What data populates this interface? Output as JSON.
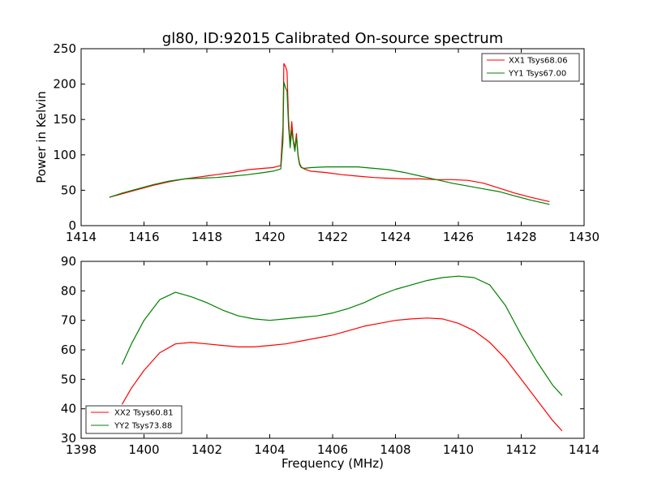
{
  "figure_title": "gl80, ID:92015 Calibrated On-source spectrum",
  "colors": {
    "xx": "#ff0000",
    "yy": "#008000",
    "axes": "#000000",
    "background": "#ffffff"
  },
  "chart_data": [
    {
      "type": "line",
      "title": "gl80, ID:92015 Calibrated On-source spectrum",
      "xlabel": "",
      "ylabel": "Power in Kelvin",
      "xlim": [
        1414,
        1430
      ],
      "ylim": [
        0,
        250
      ],
      "xticks": [
        1414,
        1416,
        1418,
        1420,
        1422,
        1424,
        1426,
        1428,
        1430
      ],
      "yticks": [
        0,
        50,
        100,
        150,
        200,
        250
      ],
      "grid": false,
      "legend_position": "top-right",
      "series": [
        {
          "name": "XX1 Tsys68.06",
          "color": "#ff0000",
          "x": [
            1414.9,
            1415.3,
            1415.8,
            1416.3,
            1416.8,
            1417.3,
            1417.8,
            1418.3,
            1418.8,
            1419.3,
            1419.8,
            1420.1,
            1420.35,
            1420.42,
            1420.45,
            1420.5,
            1420.55,
            1420.6,
            1420.65,
            1420.7,
            1420.75,
            1420.8,
            1420.85,
            1420.9,
            1420.95,
            1421.0,
            1421.1,
            1421.3,
            1421.8,
            1422.3,
            1422.8,
            1423.3,
            1423.8,
            1424.3,
            1424.8,
            1425.3,
            1425.8,
            1426.3,
            1426.8,
            1427.3,
            1427.8,
            1428.3,
            1428.9
          ],
          "y": [
            40,
            45,
            51,
            57,
            62,
            66,
            69,
            72,
            75,
            79,
            81,
            82,
            85,
            140,
            229,
            225,
            218,
            150,
            115,
            147,
            120,
            110,
            130,
            100,
            88,
            83,
            80,
            77,
            75,
            72,
            70,
            68,
            67,
            66,
            66,
            65,
            65,
            64,
            60,
            53,
            46,
            40,
            34
          ]
        },
        {
          "name": "YY1 Tsys67.00",
          "color": "#008000",
          "x": [
            1414.9,
            1415.3,
            1415.8,
            1416.3,
            1416.8,
            1417.3,
            1417.8,
            1418.3,
            1418.8,
            1419.3,
            1419.8,
            1420.1,
            1420.35,
            1420.42,
            1420.45,
            1420.5,
            1420.55,
            1420.6,
            1420.65,
            1420.7,
            1420.75,
            1420.8,
            1420.85,
            1420.9,
            1420.95,
            1421.0,
            1421.1,
            1421.3,
            1421.8,
            1422.3,
            1422.8,
            1423.3,
            1423.8,
            1424.3,
            1424.8,
            1425.3,
            1425.8,
            1426.3,
            1426.8,
            1427.3,
            1427.8,
            1428.3,
            1428.9
          ],
          "y": [
            40,
            46,
            52,
            58,
            63,
            66,
            67,
            68,
            70,
            72,
            75,
            77,
            80,
            120,
            203,
            195,
            190,
            140,
            110,
            135,
            118,
            105,
            125,
            98,
            86,
            82,
            81,
            82,
            83,
            83,
            83,
            81,
            79,
            75,
            70,
            65,
            60,
            56,
            52,
            48,
            42,
            36,
            30
          ]
        }
      ]
    },
    {
      "type": "line",
      "title": "",
      "xlabel": "Frequency (MHz)",
      "ylabel": "",
      "xlim": [
        1398,
        1414
      ],
      "ylim": [
        30,
        90
      ],
      "xticks": [
        1398,
        1400,
        1402,
        1404,
        1406,
        1408,
        1410,
        1412,
        1414
      ],
      "yticks": [
        30,
        40,
        50,
        60,
        70,
        80,
        90
      ],
      "grid": false,
      "legend_position": "bottom-left",
      "series": [
        {
          "name": "XX2 Tsys60.81",
          "color": "#ff0000",
          "x": [
            1399.3,
            1399.6,
            1400.0,
            1400.5,
            1401.0,
            1401.5,
            1402.0,
            1402.5,
            1403.0,
            1403.5,
            1404.0,
            1404.5,
            1405.0,
            1405.5,
            1406.0,
            1406.5,
            1407.0,
            1407.5,
            1408.0,
            1408.5,
            1409.0,
            1409.5,
            1410.0,
            1410.5,
            1411.0,
            1411.5,
            1412.0,
            1412.5,
            1413.0,
            1413.3
          ],
          "y": [
            41.5,
            47,
            53,
            59,
            62,
            62.5,
            62,
            61.5,
            61,
            61,
            61.5,
            62,
            63,
            64,
            65,
            66.5,
            68,
            69,
            70,
            70.5,
            70.8,
            70.5,
            69,
            66.5,
            62.5,
            57,
            50,
            43,
            36,
            32.5
          ]
        },
        {
          "name": "YY2 Tsys73.88",
          "color": "#008000",
          "x": [
            1399.3,
            1399.6,
            1400.0,
            1400.5,
            1401.0,
            1401.5,
            1402.0,
            1402.5,
            1403.0,
            1403.5,
            1404.0,
            1404.5,
            1405.0,
            1405.5,
            1406.0,
            1406.5,
            1407.0,
            1407.5,
            1408.0,
            1408.5,
            1409.0,
            1409.5,
            1410.0,
            1410.5,
            1411.0,
            1411.5,
            1412.0,
            1412.5,
            1413.0,
            1413.3
          ],
          "y": [
            55,
            62,
            70,
            77,
            79.5,
            78,
            76,
            73.5,
            71.5,
            70.5,
            70,
            70.5,
            71,
            71.5,
            72.5,
            74,
            76,
            78.5,
            80.5,
            82,
            83.5,
            84.5,
            85,
            84.5,
            82,
            75,
            65,
            56,
            48,
            44.5
          ]
        }
      ]
    }
  ]
}
